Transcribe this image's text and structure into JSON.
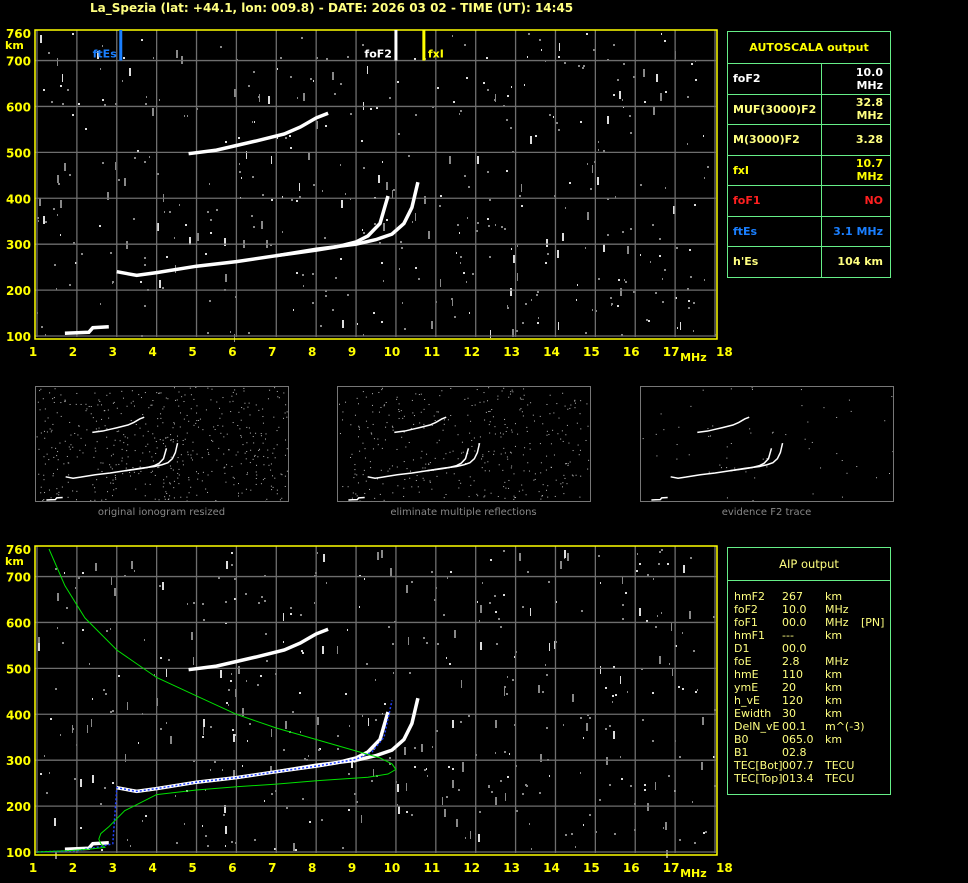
{
  "header": {
    "title": "La_Spezia (lat: +44.1, lon: 009.8) - DATE: 2026 03 02 - TIME (UT): 14:45"
  },
  "colors": {
    "axis": "#ffff00",
    "grid": "#6e6e6e",
    "trace": "#ffffff",
    "ftEs": "#1a7fff",
    "fxI": "#ffff00",
    "foF1": "#ff2020",
    "profile": "#00e000",
    "aip_trace": "#2040ff",
    "panel_border": "#66ee88"
  },
  "chart_data": [
    {
      "type": "scatter",
      "title": "",
      "xlabel": "MHz",
      "ylabel": "km",
      "xlim": [
        1,
        18
      ],
      "ylim": [
        100,
        760
      ],
      "xticks": [
        "1",
        "2",
        "3",
        "4",
        "5",
        "6",
        "7",
        "8",
        "9",
        "10",
        "11",
        "12",
        "13",
        "14",
        "15",
        "16",
        "17",
        "18"
      ],
      "yticks": [
        "100",
        "200",
        "300",
        "400",
        "500",
        "600",
        "700",
        "760"
      ],
      "grid": true,
      "markers": [
        {
          "label": "ftEs",
          "freq": 3.1
        },
        {
          "label": "foF2",
          "freq": 10.0
        },
        {
          "label": "fxI",
          "freq": 10.7
        }
      ],
      "series": [
        {
          "x": [
            3.0,
            3.5,
            4,
            5,
            6,
            7,
            8,
            8.5,
            9,
            9.3,
            9.6,
            9.8
          ],
          "y": [
            240,
            232,
            238,
            252,
            262,
            275,
            287,
            294,
            305,
            318,
            345,
            405
          ]
        },
        {
          "x": [
            7,
            8,
            9,
            9.5,
            9.9,
            10.2,
            10.4,
            10.55
          ],
          "y": [
            275,
            289,
            300,
            310,
            322,
            345,
            380,
            435
          ]
        },
        {
          "x": [
            4.8,
            5.5,
            6,
            6.5,
            7.2,
            7.6,
            8,
            8.3
          ],
          "y": [
            497,
            505,
            515,
            525,
            540,
            555,
            575,
            585
          ]
        },
        {
          "x": [
            1.7,
            2.0,
            2.3,
            2.4,
            2.8
          ],
          "y": [
            106,
            107,
            108,
            118,
            120
          ]
        }
      ]
    },
    {
      "type": "line",
      "title": "",
      "xlabel": "MHz",
      "ylabel": "km",
      "xlim": [
        1,
        18
      ],
      "ylim": [
        100,
        760
      ],
      "xticks": [
        "1",
        "2",
        "3",
        "4",
        "5",
        "6",
        "7",
        "8",
        "9",
        "10",
        "11",
        "12",
        "13",
        "14",
        "15",
        "16",
        "17",
        "18"
      ],
      "yticks": [
        "100",
        "200",
        "300",
        "400",
        "500",
        "600",
        "700",
        "760"
      ],
      "grid": true,
      "series": [
        {
          "x": [
            1.3,
            1.7,
            2.2,
            3,
            4,
            5,
            6,
            7,
            8,
            9,
            9.6,
            9.9,
            10,
            9.8,
            9.3,
            8,
            7,
            6,
            5,
            4,
            3.2,
            2.8,
            2.6,
            2.55,
            2.6,
            2.7,
            2.3,
            1.8,
            1
          ],
          "y": [
            760,
            680,
            610,
            540,
            480,
            440,
            400,
            370,
            345,
            320,
            305,
            292,
            280,
            270,
            263,
            255,
            248,
            242,
            235,
            225,
            190,
            155,
            140,
            128,
            118,
            110,
            106,
            103,
            100
          ]
        },
        {
          "x": [
            1,
            2,
            2.5,
            2.9,
            3.0,
            3.5,
            4,
            5,
            6,
            7,
            8,
            9,
            9.4,
            9.7,
            9.9
          ],
          "y": [
            100,
            103,
            110,
            118,
            240,
            232,
            238,
            252,
            262,
            275,
            287,
            302,
            318,
            350,
            430
          ]
        }
      ]
    }
  ],
  "autoscala": {
    "title": "AUTOSCALA output",
    "rows": [
      {
        "label": "foF2",
        "value": "10.0 MHz",
        "color": "#ffffff"
      },
      {
        "label": "MUF(3000)F2",
        "value": "32.8 MHz",
        "color": "#ffff80"
      },
      {
        "label": "M(3000)F2",
        "value": "3.28",
        "color": "#ffff80"
      },
      {
        "label": "fxI",
        "value": "10.7 MHz",
        "color": "#ffff00"
      },
      {
        "label": "foF1",
        "value": "NO",
        "color": "#ff2020"
      },
      {
        "label": "ftEs",
        "value": "3.1 MHz",
        "color": "#1a7fff"
      },
      {
        "label": "h'Es",
        "value": "104    km",
        "color": "#ffff80"
      }
    ]
  },
  "thumbnails": [
    {
      "caption": "original ionogram resized"
    },
    {
      "caption": "eliminate multiple reflections"
    },
    {
      "caption": "evidence F2 trace"
    }
  ],
  "aip": {
    "title": "AIP output",
    "rows": [
      [
        "hmF2",
        "267",
        "km",
        ""
      ],
      [
        "foF2",
        "10.0",
        "MHz",
        ""
      ],
      [
        "foF1",
        "00.0",
        "MHz",
        "[PN]"
      ],
      [
        "hmF1",
        "---",
        "km",
        ""
      ],
      [
        "D1",
        "00.0",
        "",
        ""
      ],
      [
        "foE",
        "2.8",
        "MHz",
        ""
      ],
      [
        "hmE",
        "110",
        "km",
        ""
      ],
      [
        "ymE",
        "20",
        "km",
        ""
      ],
      [
        "h_vE",
        "120",
        "km",
        ""
      ],
      [
        "Ewidth",
        "30",
        "km",
        ""
      ],
      [
        "DelN_vE",
        "00.1",
        "m^(-3)",
        ""
      ],
      [
        "B0",
        "065.0",
        "km",
        ""
      ],
      [
        "B1",
        "02.8",
        "",
        ""
      ],
      [
        "TEC[Bot]",
        "007.7",
        "TECU",
        ""
      ],
      [
        "TEC[Top]",
        "013.4",
        "TECU",
        ""
      ]
    ]
  }
}
